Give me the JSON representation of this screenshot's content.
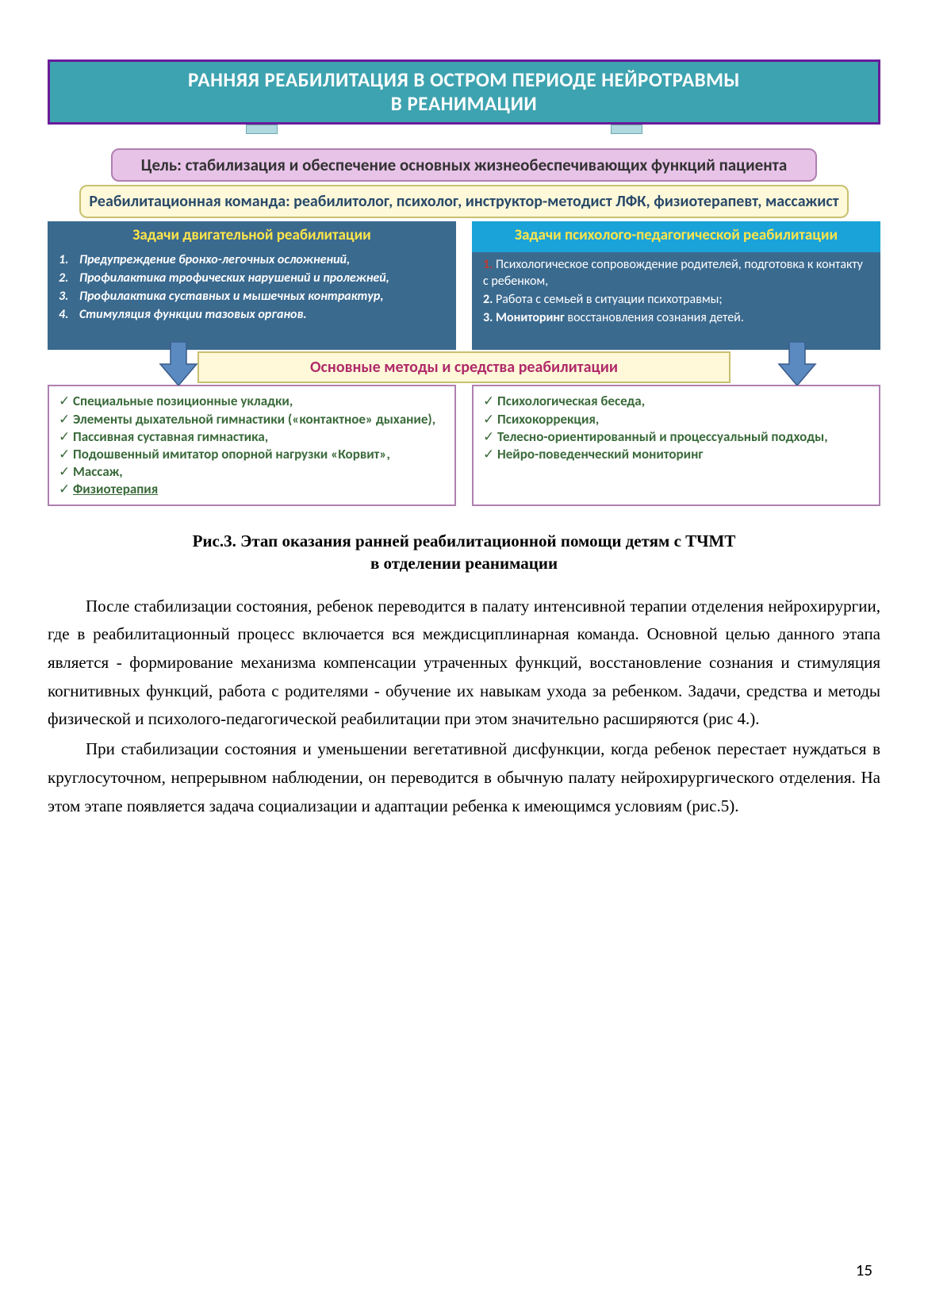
{
  "colors": {
    "banner_bg": "#3ea3b0",
    "banner_border": "#6a1b9a",
    "banner_text": "#ffffff",
    "goal_bg": "#e8c3e8",
    "goal_border": "#b07fb0",
    "team_bg": "#fff9d9",
    "team_border": "#c9c070",
    "team_text": "#2a4a6a",
    "task_bg": "#3b6a8f",
    "task_header_text": "#ffe54a",
    "task_header_right_bg": "#1aa3d8",
    "methods_text": "#b02a6a",
    "bottom_text": "#3a6a3a",
    "bottom_border": "#b07fb0",
    "arrow_fill": "#5a8ac0",
    "arrow_stroke": "#3a5a8a",
    "red_num": "#c0392b"
  },
  "banner": {
    "line1": "РАННЯЯ РЕАБИЛИТАЦИЯ В ОСТРОМ ПЕРИОДЕ НЕЙРОТРАВМЫ",
    "line2": "В РЕАНИМАЦИИ"
  },
  "goal": "Цель: стабилизация и обеспечение основных жизнеобеспечивающих функций пациента",
  "team": "Реабилитационная команда: реабилитолог, психолог, инструктор-методист ЛФК, физиотерапевт, массажист",
  "tasks_left": {
    "header": "Задачи двигательной реабилитации",
    "items": [
      {
        "n": "1.",
        "t": "Предупреждение бронхо-легочных осложнений,"
      },
      {
        "n": "2.",
        "t": "Профилактика трофических нарушений и пролежней,"
      },
      {
        "n": "3.",
        "t": "Профилактика суставных и мышечных контрактур,"
      },
      {
        "n": "4.",
        "t": "Стимуляция функции тазовых органов."
      }
    ]
  },
  "tasks_right": {
    "header": "Задачи психолого-педагогической реабилитации",
    "items": [
      {
        "n": "1.",
        "red": true,
        "t": "Психологическое сопровождение родителей, подготовка к контакту с ребенком,"
      },
      {
        "n": "2.",
        "t": "Работа с семьей в ситуации психотравмы;"
      },
      {
        "n": "3.",
        "t_bold": "Мониторинг",
        "t_rest": " восстановления сознания детей."
      }
    ]
  },
  "methods_title": "Основные методы и средства реабилитации",
  "methods_left": [
    "Специальные позиционные укладки,",
    " Элементы дыхательной гимнастики («контактное» дыхание),",
    "Пассивная суставная гимнастика,",
    " Подошвенный имитатор опорной нагрузки «Корвит»,",
    "Массаж,",
    "Физиотерапия"
  ],
  "methods_right": [
    " Психологическая  беседа,",
    " Психокоррекция,",
    "Телесно-ориентированный  и процессуальный подходы,",
    " Нейро-поведенческий  мониторинг"
  ],
  "caption": {
    "line1": "Рис.3. Этап оказания ранней реабилитационной помощи детям с ТЧМТ",
    "line2": "в отделении реанимации"
  },
  "paragraphs": [
    "После стабилизации состояния, ребенок переводится в палату интенсивной терапии отделения нейрохирургии, где в реабилитационный процесс включается вся междисциплинарная команда. Основной целью данного этапа является - формирование механизма компенсации утраченных функций, восстановление сознания и стимуляция когнитивных функций, работа с родителями - обучение их навыкам ухода за ребенком. Задачи, средства и методы физической и психолого-педагогической реабилитации при этом значительно расширяются (рис 4.).",
    "При стабилизации состояния и уменьшении вегетативной дисфункции, когда ребенок перестает нуждаться в круглосуточном, непрерывном наблюдении, он переводится  в обычную палату нейрохирургического отделения. На этом этапе появляется задача социализации и адаптации ребенка к имеющимся условиям (рис.5)."
  ],
  "page_number": "15"
}
